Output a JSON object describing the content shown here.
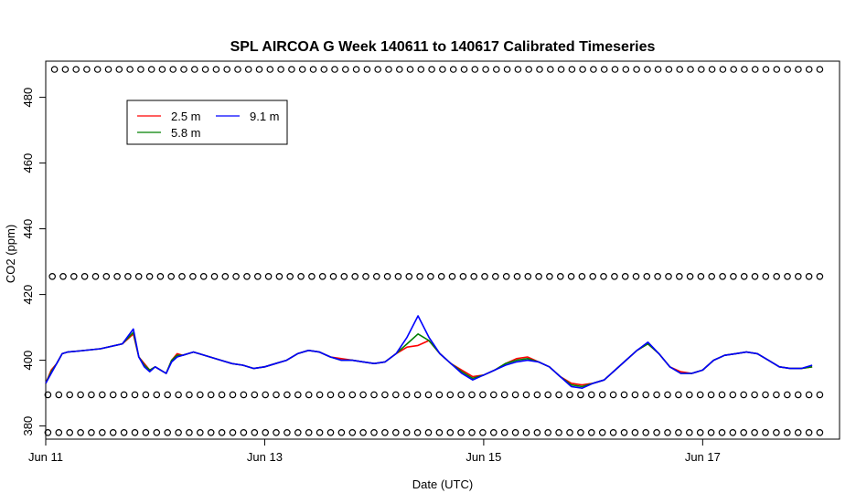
{
  "chart_data": {
    "type": "line",
    "title": "SPL AIRCOA G  Week 140611 to 140617  Calibrated Timeseries",
    "xlabel": "Date (UTC)",
    "ylabel": "CO2 (ppm)",
    "xlim": [
      0,
      7.25
    ],
    "ylim": [
      376,
      491
    ],
    "x_ticks": [
      {
        "value": 0,
        "label": "Jun 11"
      },
      {
        "value": 2,
        "label": "Jun 13"
      },
      {
        "value": 4,
        "label": "Jun 15"
      },
      {
        "value": 6,
        "label": "Jun 17"
      }
    ],
    "y_ticks": [
      {
        "value": 380,
        "label": "380"
      },
      {
        "value": 400,
        "label": "400"
      },
      {
        "value": 420,
        "label": "420"
      },
      {
        "value": 440,
        "label": "440"
      },
      {
        "value": 460,
        "label": "460"
      },
      {
        "value": 480,
        "label": "480"
      }
    ],
    "grid": false,
    "legend": {
      "placement": "top-left",
      "columns": 2
    },
    "series": [
      {
        "name": "2.5 m",
        "color": "#ff0000",
        "x": [
          0.0,
          0.05,
          0.1,
          0.15,
          0.2,
          0.3,
          0.5,
          0.7,
          0.8,
          0.85,
          0.9,
          0.95,
          1.0,
          1.05,
          1.1,
          1.15,
          1.2,
          1.25,
          1.3,
          1.35,
          1.4,
          1.5,
          1.6,
          1.7,
          1.8,
          1.9,
          2.0,
          2.1,
          2.2,
          2.3,
          2.4,
          2.5,
          2.6,
          2.7,
          2.8,
          2.9,
          3.0,
          3.1,
          3.2,
          3.3,
          3.4,
          3.5,
          3.6,
          3.7,
          3.8,
          3.9,
          4.0,
          4.1,
          4.2,
          4.3,
          4.4,
          4.5,
          4.6,
          4.7,
          4.8,
          4.9,
          5.0,
          5.1,
          5.2,
          5.3,
          5.4,
          5.5,
          5.6,
          5.7,
          5.8,
          5.9,
          6.0,
          6.1,
          6.2,
          6.3,
          6.4,
          6.5,
          6.6,
          6.7,
          6.8,
          6.9,
          7.0
        ],
        "values": [
          393,
          397,
          399,
          402,
          402.5,
          402.8,
          403.5,
          405,
          408,
          401,
          399,
          397,
          398,
          397,
          396,
          400,
          402,
          401.5,
          402,
          402.5,
          402,
          401,
          400,
          399,
          398.5,
          397.5,
          398,
          399,
          400,
          402,
          403,
          402.5,
          401,
          400.5,
          400,
          399.5,
          399,
          399.5,
          402,
          404,
          404.5,
          406,
          402,
          399,
          397,
          395,
          395.5,
          397,
          399,
          400.5,
          401,
          399.5,
          398,
          395,
          393,
          392.5,
          393,
          394,
          397,
          400,
          403,
          405,
          402,
          398,
          396.5,
          396,
          397,
          400,
          401.5,
          402,
          402.5,
          402,
          400,
          398,
          397.5,
          397.5,
          398
        ]
      },
      {
        "name": "5.8 m",
        "color": "#008000",
        "x": [
          0.0,
          0.05,
          0.1,
          0.15,
          0.2,
          0.3,
          0.5,
          0.7,
          0.8,
          0.85,
          0.9,
          0.95,
          1.0,
          1.05,
          1.1,
          1.15,
          1.2,
          1.25,
          1.3,
          1.35,
          1.4,
          1.5,
          1.6,
          1.7,
          1.8,
          1.9,
          2.0,
          2.1,
          2.2,
          2.3,
          2.4,
          2.5,
          2.6,
          2.7,
          2.8,
          2.9,
          3.0,
          3.1,
          3.2,
          3.3,
          3.4,
          3.5,
          3.6,
          3.7,
          3.8,
          3.9,
          4.0,
          4.1,
          4.2,
          4.3,
          4.4,
          4.5,
          4.6,
          4.7,
          4.8,
          4.9,
          5.0,
          5.1,
          5.2,
          5.3,
          5.4,
          5.5,
          5.6,
          5.7,
          5.8,
          5.9,
          6.0,
          6.1,
          6.2,
          6.3,
          6.4,
          6.5,
          6.6,
          6.7,
          6.8,
          6.9,
          7.0
        ],
        "values": [
          393,
          396.5,
          399,
          402,
          402.5,
          402.8,
          403.5,
          405,
          408.5,
          401,
          398.5,
          397,
          398,
          397,
          396,
          400,
          401.5,
          401.5,
          402,
          402.5,
          402,
          401,
          400,
          399,
          398.5,
          397.5,
          398,
          399,
          400,
          402,
          403,
          402.5,
          401,
          400,
          400,
          399.5,
          399,
          399.5,
          402,
          405,
          408,
          406,
          402,
          399,
          396.5,
          394.5,
          395.5,
          397,
          399,
          400,
          400.5,
          399.5,
          398,
          395,
          392.5,
          392,
          393,
          394,
          397,
          400,
          403,
          405,
          402,
          398,
          396,
          396,
          397,
          400,
          401.5,
          402,
          402.5,
          402,
          400,
          398,
          397.5,
          397.5,
          398
        ]
      },
      {
        "name": "9.1 m",
        "color": "#0000ff",
        "x": [
          0.0,
          0.05,
          0.1,
          0.15,
          0.2,
          0.3,
          0.5,
          0.7,
          0.8,
          0.85,
          0.9,
          0.95,
          1.0,
          1.05,
          1.1,
          1.15,
          1.2,
          1.25,
          1.3,
          1.35,
          1.4,
          1.5,
          1.6,
          1.7,
          1.8,
          1.9,
          2.0,
          2.1,
          2.2,
          2.3,
          2.4,
          2.5,
          2.6,
          2.7,
          2.8,
          2.9,
          3.0,
          3.1,
          3.2,
          3.3,
          3.4,
          3.5,
          3.6,
          3.7,
          3.8,
          3.9,
          4.0,
          4.1,
          4.2,
          4.3,
          4.4,
          4.5,
          4.6,
          4.7,
          4.8,
          4.9,
          5.0,
          5.1,
          5.2,
          5.3,
          5.4,
          5.5,
          5.6,
          5.7,
          5.8,
          5.9,
          6.0,
          6.1,
          6.2,
          6.3,
          6.4,
          6.5,
          6.6,
          6.7,
          6.8,
          6.9,
          7.0
        ],
        "values": [
          393,
          396,
          399,
          402,
          402.5,
          402.8,
          403.5,
          405,
          409.5,
          401,
          398,
          396.5,
          398,
          397,
          396,
          399.5,
          401,
          401.5,
          402,
          402.5,
          402,
          401,
          400,
          399,
          398.5,
          397.5,
          398,
          399,
          400,
          402,
          403,
          402.5,
          401,
          400,
          400,
          399.5,
          399,
          399.5,
          402,
          407,
          413.5,
          407,
          402,
          399,
          396,
          394,
          395.5,
          397,
          398.5,
          399.5,
          400,
          399.5,
          398,
          395,
          392,
          391.5,
          393,
          394,
          397,
          400,
          403,
          405.5,
          402,
          398,
          396,
          396,
          397,
          400,
          401.5,
          402,
          402.5,
          402,
          400,
          398,
          397.5,
          397.5,
          398.5
        ]
      }
    ],
    "marker_rows": [
      {
        "value": 488.5,
        "x_start": 0.08,
        "x_end": 7.07,
        "count": 72
      },
      {
        "value": 425.5,
        "x_start": 0.06,
        "x_end": 7.07,
        "count": 72
      },
      {
        "value": 389.5,
        "x_start": 0.02,
        "x_end": 7.07,
        "count": 72
      },
      {
        "value": 378.0,
        "x_start": 0.02,
        "x_end": 7.07,
        "count": 72
      }
    ]
  }
}
